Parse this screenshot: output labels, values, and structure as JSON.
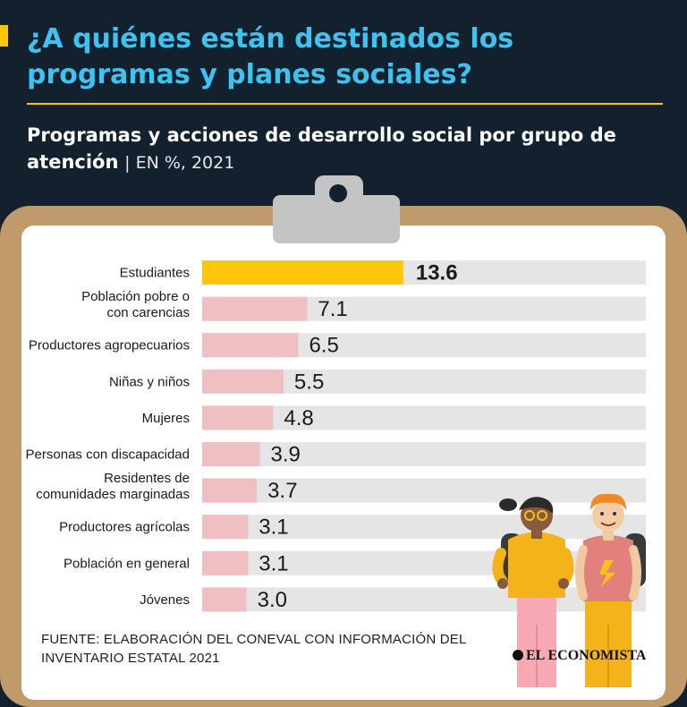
{
  "header": {
    "title": "¿A quiénes están destinados los programas y planes sociales?",
    "subtitle": "Programas y acciones de desarrollo social por grupo de atención",
    "subtitle_unit": "| EN %, 2021"
  },
  "chart_data": {
    "type": "bar",
    "orientation": "horizontal",
    "title": "Programas y acciones de desarrollo social por grupo de atención",
    "unit": "EN %, 2021",
    "xlim": [
      0,
      30
    ],
    "categories": [
      [
        "Estudiantes"
      ],
      [
        "Población pobre o",
        "con carencias"
      ],
      [
        "Productores agropecuarios"
      ],
      [
        "Niñas y niños"
      ],
      [
        "Mujeres"
      ],
      [
        "Personas con discapacidad"
      ],
      [
        "Residentes de",
        "comunidades marginadas"
      ],
      [
        "Productores agrícolas"
      ],
      [
        "Población en general"
      ],
      [
        "Jóvenes"
      ]
    ],
    "values": [
      13.6,
      7.1,
      6.5,
      5.5,
      4.8,
      3.9,
      3.7,
      3.1,
      3.1,
      3.0
    ],
    "value_labels": [
      "13.6",
      "7.1",
      "6.5",
      "5.5",
      "4.8",
      "3.9",
      "3.7",
      "3.1",
      "3.1",
      "3.0"
    ],
    "colors": {
      "highlight": "#ffc60b",
      "default": "#efbfc1",
      "track": "#e5e5e5"
    }
  },
  "footer": {
    "source": "FUENTE: ELABORACIÓN DEL CONEVAL CON INFORMACIÓN DEL INVENTARIO ESTATAL 2021",
    "logo": "EL ECONOMISTA"
  },
  "colors": {
    "background": "#13202d",
    "title": "#3cc3ef",
    "accent": "#ffc60b",
    "clipboard": "#c19a6b"
  }
}
